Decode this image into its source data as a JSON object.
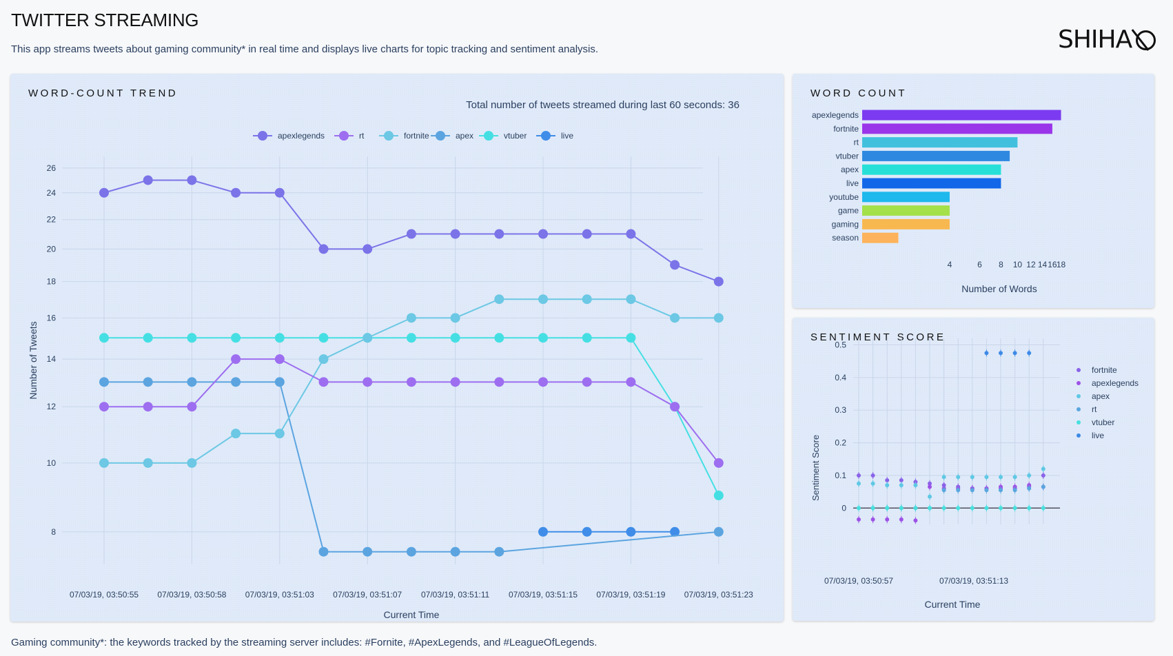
{
  "header": {
    "title": "TWITTER STREAMING",
    "description": "This app streams tweets about gaming community* in real time and displays live charts for topic tracking and sentiment analysis.",
    "logo_text": "SHIHA"
  },
  "footer": {
    "note": "Gaming community*: the keywords tracked by the streaming server includes: #Fornite, #ApexLegends, and #LeagueOfLegends."
  },
  "trend_panel": {
    "title": "WORD-COUNT TREND",
    "annotation": "Total number of tweets streamed during last 60 seconds: 36"
  },
  "wordcount_panel": {
    "title": "WORD COUNT"
  },
  "sentiment_panel": {
    "title": "SENTIMENT SCORE"
  },
  "chart_data": [
    {
      "id": "trend",
      "type": "line",
      "xlabel": "Current Time",
      "ylabel": "Number of Tweets",
      "y_scale": "log",
      "ylim": [
        7.2,
        27
      ],
      "yticks": [
        8,
        10,
        12,
        14,
        16,
        18,
        20,
        22,
        24,
        26
      ],
      "x_ticks": [
        "07/03/19, 03:50:55",
        "07/03/19, 03:50:58",
        "07/03/19, 03:51:03",
        "07/03/19, 03:51:07",
        "07/03/19, 03:51:11",
        "07/03/19, 03:51:15",
        "07/03/19, 03:51:19",
        "07/03/19, 03:51:23"
      ],
      "x": [
        "03:50:55",
        "03:50:56",
        "03:50:58",
        "03:51:00",
        "03:51:03",
        "03:51:04",
        "03:51:07",
        "03:51:09",
        "03:51:11",
        "03:51:13",
        "03:51:15",
        "03:51:17",
        "03:51:19",
        "03:51:21",
        "03:51:23"
      ],
      "legend_position": "top",
      "series": [
        {
          "name": "apexlegends",
          "color": "#7b73e8",
          "values": [
            24,
            25,
            25,
            24,
            24,
            20,
            20,
            21,
            21,
            21,
            21,
            21,
            21,
            19,
            18
          ]
        },
        {
          "name": "rt",
          "color": "#9d6ef0",
          "values": [
            12,
            12,
            12,
            14,
            14,
            13,
            13,
            13,
            13,
            13,
            13,
            13,
            13,
            12,
            10
          ]
        },
        {
          "name": "fortnite",
          "color": "#6cc8e4",
          "values": [
            10,
            10,
            10,
            11,
            11,
            14,
            15,
            16,
            16,
            17,
            17,
            17,
            17,
            16,
            16
          ]
        },
        {
          "name": "apex",
          "color": "#5ba4e0",
          "values": [
            13,
            13,
            13,
            13,
            13,
            7.5,
            7.5,
            7.5,
            7.5,
            7.5,
            null,
            null,
            null,
            null,
            8
          ]
        },
        {
          "name": "vtuber",
          "color": "#45dfe3",
          "values": [
            15,
            15,
            15,
            15,
            15,
            15,
            15,
            15,
            15,
            15,
            15,
            15,
            15,
            12,
            9
          ]
        },
        {
          "name": "live",
          "color": "#3f8de8",
          "values": [
            null,
            null,
            null,
            null,
            null,
            null,
            null,
            null,
            null,
            null,
            8,
            8,
            8,
            8,
            null
          ]
        }
      ]
    },
    {
      "id": "wordcount",
      "type": "bar",
      "orientation": "horizontal",
      "xlabel": "Number of Words",
      "x_scale": "log",
      "xticks": [
        4,
        6,
        8,
        10,
        12,
        14,
        16,
        18
      ],
      "categories": [
        "apexlegends",
        "fortnite",
        "rt",
        "vtuber",
        "apex",
        "live",
        "youtube",
        "game",
        "gaming",
        "season"
      ],
      "values": [
        18,
        16,
        10,
        9,
        8,
        8,
        4,
        4,
        4,
        2
      ],
      "colors": [
        "#7c3bf0",
        "#9a35ea",
        "#41c0de",
        "#2f88e0",
        "#26e0d8",
        "#1267e8",
        "#1eb8ec",
        "#a4e04a",
        "#f8b850",
        "#fdb35c"
      ]
    },
    {
      "id": "sentiment",
      "type": "scatter",
      "xlabel": "Current Time",
      "ylabel": "Sentiment Score",
      "ylim": [
        -0.05,
        0.52
      ],
      "yticks": [
        0,
        0.1,
        0.2,
        0.3,
        0.4,
        0.5
      ],
      "x_ticks": [
        "07/03/19, 03:50:57",
        "07/03/19, 03:51:13"
      ],
      "x_positions": [
        0,
        1,
        2,
        3,
        4,
        5,
        6,
        7,
        8,
        9,
        10,
        11,
        12,
        13
      ],
      "legend_position": "right",
      "series": [
        {
          "name": "fortnite",
          "color": "#8a63e8",
          "points": [
            [
              0,
              0.1
            ],
            [
              1,
              0.1
            ],
            [
              2,
              0.085
            ],
            [
              3,
              0.085
            ],
            [
              4,
              0.08
            ],
            [
              5,
              0.075
            ],
            [
              6,
              0.07
            ],
            [
              7,
              0.065
            ],
            [
              8,
              0.06
            ],
            [
              9,
              0.06
            ],
            [
              10,
              0.06
            ],
            [
              11,
              0.06
            ],
            [
              12,
              0.065
            ],
            [
              13,
              0.1
            ]
          ]
        },
        {
          "name": "apexlegends",
          "color": "#9d52e6",
          "points": [
            [
              0,
              -0.035
            ],
            [
              1,
              -0.035
            ],
            [
              2,
              -0.035
            ],
            [
              3,
              -0.035
            ],
            [
              4,
              -0.038
            ],
            [
              5,
              0.065
            ],
            [
              6,
              0.06
            ],
            [
              7,
              0.06
            ],
            [
              8,
              0.06
            ],
            [
              9,
              0.06
            ],
            [
              10,
              0.065
            ],
            [
              11,
              0.065
            ],
            [
              12,
              0.07
            ],
            [
              13,
              0.065
            ]
          ]
        },
        {
          "name": "apex",
          "color": "#5fc8e4",
          "points": [
            [
              0,
              0.075
            ],
            [
              1,
              0.075
            ],
            [
              2,
              0.07
            ],
            [
              3,
              0.07
            ],
            [
              4,
              0.07
            ],
            [
              5,
              0.035
            ],
            [
              6,
              0.095
            ],
            [
              7,
              0.095
            ],
            [
              8,
              0.095
            ],
            [
              9,
              0.095
            ],
            [
              10,
              0.095
            ],
            [
              11,
              0.095
            ],
            [
              12,
              0.1
            ],
            [
              13,
              0.12
            ]
          ]
        },
        {
          "name": "rt",
          "color": "#5aa6de",
          "points": [
            [
              0,
              0
            ],
            [
              1,
              0
            ],
            [
              2,
              0
            ],
            [
              3,
              0
            ],
            [
              4,
              0
            ],
            [
              5,
              0
            ],
            [
              6,
              0.055
            ],
            [
              7,
              0.055
            ],
            [
              8,
              0.055
            ],
            [
              9,
              0.055
            ],
            [
              10,
              0.055
            ],
            [
              11,
              0.055
            ],
            [
              12,
              0.06
            ],
            [
              13,
              0.065
            ]
          ]
        },
        {
          "name": "vtuber",
          "color": "#46e0de",
          "points": [
            [
              0,
              0
            ],
            [
              1,
              0
            ],
            [
              2,
              0
            ],
            [
              3,
              0
            ],
            [
              4,
              0
            ],
            [
              5,
              0
            ],
            [
              6,
              0
            ],
            [
              7,
              0
            ],
            [
              8,
              0
            ],
            [
              9,
              0
            ],
            [
              10,
              0
            ],
            [
              11,
              0
            ],
            [
              12,
              0
            ],
            [
              13,
              0
            ]
          ]
        },
        {
          "name": "live",
          "color": "#3d8ae6",
          "points": [
            [
              9,
              0.475
            ],
            [
              10,
              0.475
            ],
            [
              11,
              0.475
            ],
            [
              12,
              0.475
            ]
          ]
        }
      ]
    }
  ]
}
